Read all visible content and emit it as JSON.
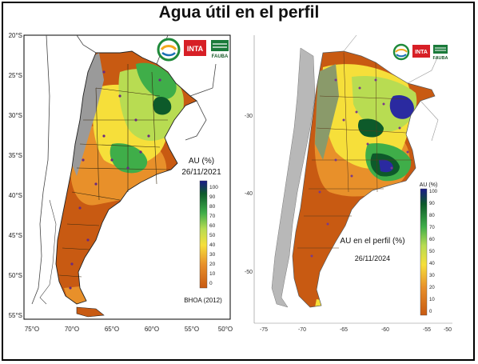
{
  "title": "Agua útil en el perfil",
  "left_map": {
    "lat_labels": [
      "20°S",
      "25°S",
      "30°S",
      "35°S",
      "40°S",
      "45°S",
      "50°S",
      "55°S"
    ],
    "lon_labels": [
      "75°O",
      "70°O",
      "65°O",
      "60°O",
      "55°O",
      "50°O"
    ],
    "legend_title_line1": "AU (%)",
    "legend_date": "26/11/2021",
    "legend_ticks": [
      "100",
      "90",
      "80",
      "70",
      "60",
      "50",
      "40",
      "30",
      "20",
      "10",
      "0"
    ],
    "source": "BHOA (2012)",
    "logos": [
      "INTA",
      "FAUBA"
    ]
  },
  "right_map": {
    "lat_labels": [
      "-30",
      "-40",
      "-50"
    ],
    "lon_labels": [
      "-75",
      "-70",
      "-65",
      "-60",
      "-55",
      "-50"
    ],
    "legend_title": "AU (%)",
    "legend_ticks": [
      "100",
      "90",
      "80",
      "70",
      "60",
      "50",
      "40",
      "30",
      "20",
      "10",
      "0"
    ],
    "annotation_title": "AU en el perfil (%)",
    "annotation_date": "26/11/2024",
    "logos": [
      "INTA",
      "FAUBA"
    ]
  },
  "colors": {
    "orange_dry": "#c85a12",
    "orange": "#e8902a",
    "yellow": "#f6df3a",
    "light_green": "#b8dc52",
    "green": "#3fae49",
    "dark_green": "#0d5a2a",
    "blue": "#2a2aa0",
    "gray_mountains": "#9a9a9a"
  }
}
